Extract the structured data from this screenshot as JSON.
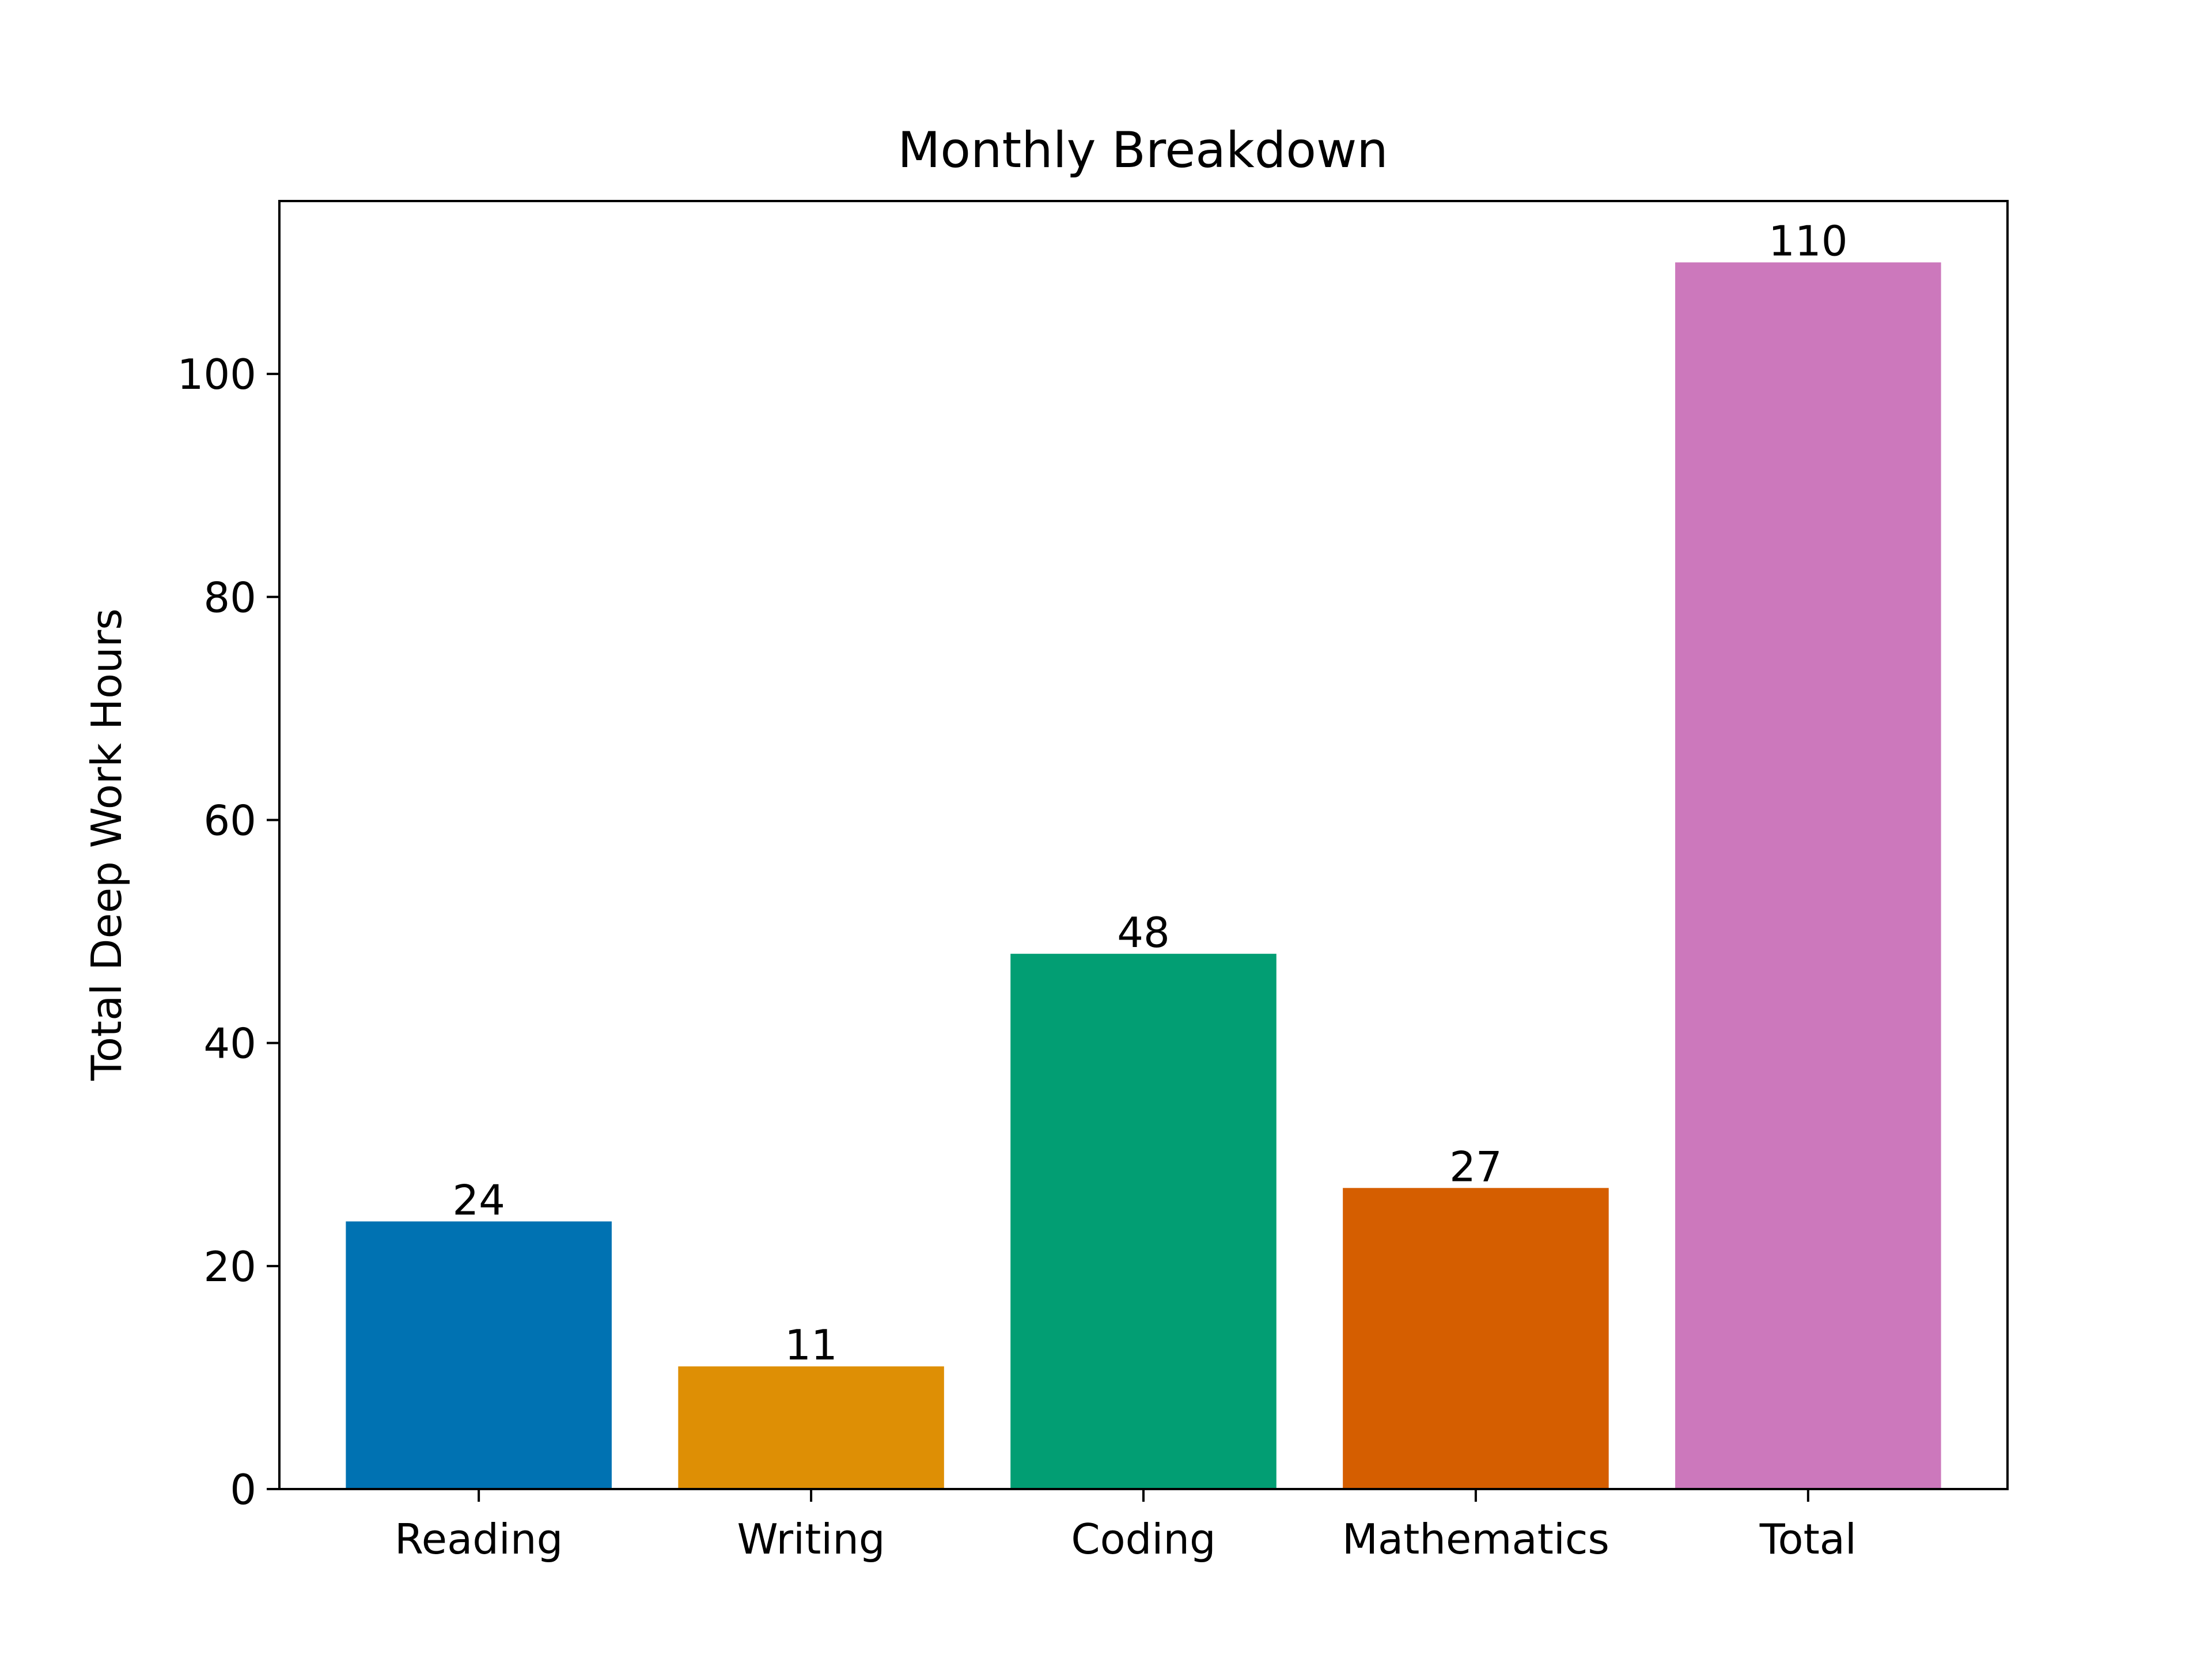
{
  "chart_data": {
    "type": "bar",
    "title": "Monthly Breakdown",
    "xlabel": "",
    "ylabel": "Total Deep Work Hours",
    "categories": [
      "Reading",
      "Writing",
      "Coding",
      "Mathematics",
      "Total"
    ],
    "values": [
      24,
      11,
      48,
      27,
      110
    ],
    "data_labels": [
      "24",
      "11",
      "48",
      "27",
      "110"
    ],
    "colors": [
      "#0072b2",
      "#de8f05",
      "#029e73",
      "#d55e00",
      "#cc78bc"
    ],
    "ylim": [
      0,
      115.5
    ],
    "yticks": [
      0,
      20,
      40,
      60,
      80,
      100
    ],
    "ytick_labels": [
      "0",
      "20",
      "40",
      "60",
      "80",
      "100"
    ],
    "grid": false,
    "legend": "none"
  }
}
